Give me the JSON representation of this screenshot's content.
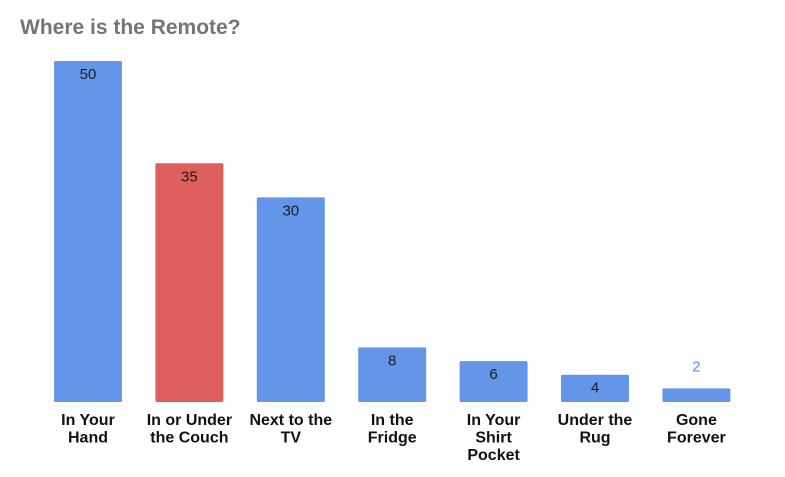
{
  "chart_data": {
    "type": "bar",
    "title": "Where is the Remote?",
    "categories": [
      [
        "In Your",
        "Hand"
      ],
      [
        "In or Under",
        "the Couch"
      ],
      [
        "Next to the",
        "TV"
      ],
      [
        "In the",
        "Fridge"
      ],
      [
        "In Your",
        "Shirt",
        "Pocket"
      ],
      [
        "Under the",
        "Rug"
      ],
      [
        "Gone",
        "Forever"
      ]
    ],
    "values": [
      50,
      35,
      30,
      8,
      6,
      4,
      2
    ],
    "bar_colors": [
      "#6396e8",
      "#de5f5c",
      "#6396e8",
      "#6396e8",
      "#6396e8",
      "#6396e8",
      "#6396e8"
    ],
    "xlabel": "",
    "ylabel": "",
    "ylim": [
      0,
      50
    ],
    "grid": false,
    "legend": "none"
  }
}
